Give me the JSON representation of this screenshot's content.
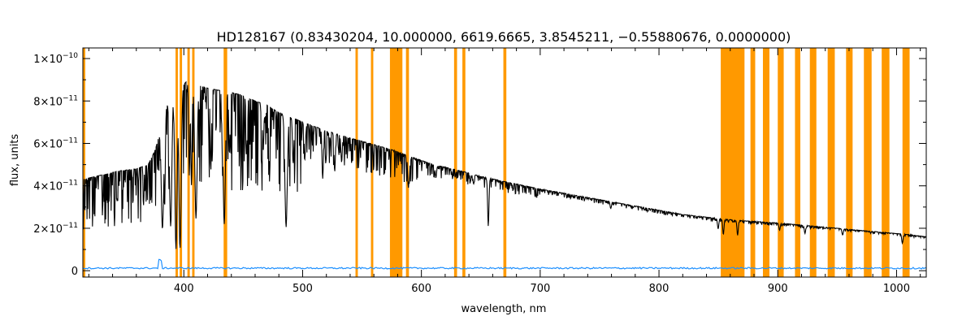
{
  "chart_data": {
    "type": "line",
    "title": "HD128167   (0.83430204, 10.000000, 6619.6665, 3.8545211, −0.55880676, 0.0000000)",
    "xlabel": "wavelength, nm",
    "ylabel": "flux, units",
    "xlim": [
      315,
      1025
    ],
    "ylim": [
      -3e-12,
      1.05e-10
    ],
    "grid": false,
    "x_ticks": [
      {
        "value": 400,
        "label": "400"
      },
      {
        "value": 500,
        "label": "500"
      },
      {
        "value": 600,
        "label": "600"
      },
      {
        "value": 700,
        "label": "700"
      },
      {
        "value": 800,
        "label": "800"
      },
      {
        "value": 900,
        "label": "900"
      },
      {
        "value": 1000,
        "label": "1000"
      }
    ],
    "y_ticks": [
      {
        "value": 0,
        "base": "0",
        "exp": ""
      },
      {
        "value": 2e-11,
        "base": "2×10",
        "exp": "−11"
      },
      {
        "value": 4e-11,
        "base": "4×10",
        "exp": "−11"
      },
      {
        "value": 6e-11,
        "base": "6×10",
        "exp": "−11"
      },
      {
        "value": 8e-11,
        "base": "8×10",
        "exp": "−11"
      },
      {
        "value": 1e-10,
        "base": "1×10",
        "exp": "−10"
      }
    ],
    "colors": {
      "spectrum": "#000000",
      "error": "#1e90ff",
      "masked": "#ff9900"
    },
    "masked_ranges": [
      [
        315,
        317
      ],
      [
        393,
        395
      ],
      [
        396.5,
        398.5
      ],
      [
        403,
        405
      ],
      [
        407,
        409
      ],
      [
        433.5,
        436.5
      ],
      [
        544.5,
        546.5
      ],
      [
        557.5,
        559.5
      ],
      [
        573.5,
        584
      ],
      [
        587,
        589.5
      ],
      [
        627.5,
        630
      ],
      [
        634.5,
        637
      ],
      [
        669,
        671.5
      ],
      [
        852,
        872
      ],
      [
        877,
        881
      ],
      [
        887.5,
        893
      ],
      [
        900,
        905
      ],
      [
        914.5,
        919
      ],
      [
        927,
        932.5
      ],
      [
        942,
        948
      ],
      [
        957.5,
        963
      ],
      [
        972.5,
        979
      ],
      [
        987.5,
        994
      ],
      [
        1005,
        1011
      ]
    ],
    "continuum": [
      [
        315,
        4.3e-11
      ],
      [
        330,
        4.5e-11
      ],
      [
        345,
        4.7e-11
      ],
      [
        360,
        4.8e-11
      ],
      [
        370,
        5e-11
      ],
      [
        376,
        5.7e-11
      ],
      [
        382,
        7e-11
      ],
      [
        388,
        8.3e-11
      ],
      [
        394,
        8.6e-11
      ],
      [
        400,
        8.8e-11
      ],
      [
        404,
        9e-11
      ],
      [
        412,
        8.75e-11
      ],
      [
        420,
        8.6e-11
      ],
      [
        430,
        8.5e-11
      ],
      [
        440,
        8.4e-11
      ],
      [
        450,
        8.25e-11
      ],
      [
        460,
        8e-11
      ],
      [
        470,
        7.8e-11
      ],
      [
        480,
        7.45e-11
      ],
      [
        490,
        7.25e-11
      ],
      [
        500,
        7e-11
      ],
      [
        520,
        6.6e-11
      ],
      [
        540,
        6.25e-11
      ],
      [
        560,
        5.95e-11
      ],
      [
        575,
        5.7e-11
      ],
      [
        590,
        5.4e-11
      ],
      [
        610,
        5e-11
      ],
      [
        630,
        4.75e-11
      ],
      [
        650,
        4.45e-11
      ],
      [
        670,
        4.2e-11
      ],
      [
        700,
        3.85e-11
      ],
      [
        730,
        3.55e-11
      ],
      [
        760,
        3.25e-11
      ],
      [
        790,
        2.95e-11
      ],
      [
        820,
        2.65e-11
      ],
      [
        852,
        2.45e-11
      ],
      [
        872,
        2.35e-11
      ],
      [
        900,
        2.25e-11
      ],
      [
        930,
        2.1e-11
      ],
      [
        960,
        1.95e-11
      ],
      [
        990,
        1.8e-11
      ],
      [
        1010,
        1.7e-11
      ],
      [
        1025,
        1.6e-11
      ]
    ],
    "absorption_lines": [
      [
        382.0,
        0.72
      ],
      [
        383.8,
        0.6
      ],
      [
        388.9,
        0.75
      ],
      [
        393.4,
        0.88
      ],
      [
        396.8,
        0.88
      ],
      [
        404.6,
        0.5
      ],
      [
        406.4,
        0.55
      ],
      [
        410.2,
        0.72
      ],
      [
        422.7,
        0.45
      ],
      [
        432.6,
        0.4
      ],
      [
        434.0,
        0.74
      ],
      [
        438.4,
        0.35
      ],
      [
        452.9,
        0.3
      ],
      [
        466.8,
        0.28
      ],
      [
        486.1,
        0.72
      ],
      [
        492.0,
        0.3
      ],
      [
        501.8,
        0.25
      ],
      [
        516.9,
        0.35
      ],
      [
        527.0,
        0.28
      ],
      [
        532.8,
        0.2
      ],
      [
        589.0,
        0.28
      ],
      [
        589.6,
        0.25
      ],
      [
        612.2,
        0.12
      ],
      [
        643.9,
        0.1
      ],
      [
        656.3,
        0.52
      ],
      [
        759.4,
        0.1
      ],
      [
        849.8,
        0.2
      ],
      [
        854.2,
        0.3
      ],
      [
        866.2,
        0.3
      ],
      [
        901.5,
        0.15
      ],
      [
        922.9,
        0.18
      ],
      [
        954.6,
        0.15
      ],
      [
        1004.9,
        0.25
      ]
    ],
    "error_level": 1.2e-12
  }
}
